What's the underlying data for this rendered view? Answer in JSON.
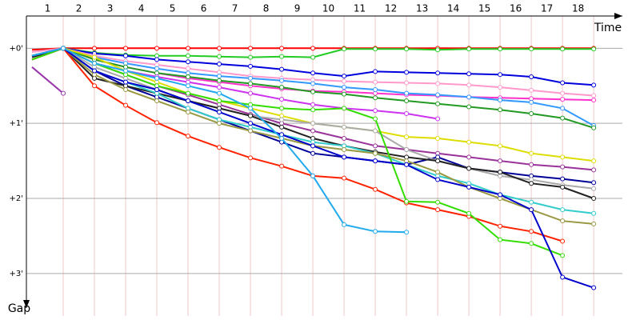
{
  "chart_data": {
    "type": "line",
    "x_label": "Time",
    "y_label": "Gap",
    "x": [
      0,
      1,
      2,
      3,
      4,
      5,
      6,
      7,
      8,
      9,
      10,
      11,
      12,
      13,
      14,
      15,
      16,
      17,
      18
    ],
    "xlim": [
      -0.18,
      18.92
    ],
    "xticks": [
      {
        "value": 0.5,
        "label": "1"
      },
      {
        "value": 1.5,
        "label": "2"
      },
      {
        "value": 2.5,
        "label": "3"
      },
      {
        "value": 3.5,
        "label": "4"
      },
      {
        "value": 4.5,
        "label": "5"
      },
      {
        "value": 5.5,
        "label": "6"
      },
      {
        "value": 6.5,
        "label": "7"
      },
      {
        "value": 7.5,
        "label": "8"
      },
      {
        "value": 8.5,
        "label": "9"
      },
      {
        "value": 9.5,
        "label": "10"
      },
      {
        "value": 10.5,
        "label": "11"
      },
      {
        "value": 11.5,
        "label": "12"
      },
      {
        "value": 12.5,
        "label": "13"
      },
      {
        "value": 13.5,
        "label": "14"
      },
      {
        "value": 14.5,
        "label": "15"
      },
      {
        "value": 15.5,
        "label": "16"
      },
      {
        "value": 16.5,
        "label": "17"
      },
      {
        "value": 17.5,
        "label": "18"
      }
    ],
    "xgrid": [
      1,
      2,
      3,
      4,
      5,
      6,
      7,
      8,
      9,
      10,
      11,
      12,
      13,
      14,
      15,
      16,
      17,
      18
    ],
    "ylim": [
      -0.43,
      3.46
    ],
    "yticks": [
      {
        "value": 0,
        "label": "+0'"
      },
      {
        "value": 1,
        "label": "+1'"
      },
      {
        "value": 2,
        "label": "+2'"
      },
      {
        "value": 3,
        "label": "+3'"
      }
    ],
    "grid": true,
    "series": [
      {
        "color": "#ff0000",
        "values": [
          0.02,
          0,
          0,
          0,
          0,
          0,
          0,
          0,
          0,
          0,
          0,
          0,
          0,
          0,
          0,
          0,
          0,
          0,
          0
        ]
      },
      {
        "color": "#22cc22",
        "values": [
          0.1,
          0,
          0.06,
          0.09,
          0.1,
          0.1,
          0.11,
          0.12,
          0.11,
          0.12,
          0.01,
          0.01,
          0.01,
          0.02,
          0.01,
          0.01,
          0.01,
          0.01,
          0.01
        ]
      },
      {
        "color": "#0000dd",
        "values": [
          0.1,
          0,
          0.07,
          0.1,
          0.15,
          0.18,
          0.21,
          0.24,
          0.28,
          0.33,
          0.37,
          0.31,
          0.32,
          0.33,
          0.34,
          0.35,
          0.38,
          0.46,
          0.49
        ]
      },
      {
        "color": "#ff99cc",
        "values": [
          0.05,
          0,
          0.1,
          0.17,
          0.22,
          0.27,
          0.32,
          0.37,
          0.4,
          0.42,
          0.44,
          0.45,
          0.46,
          0.47,
          0.49,
          0.52,
          0.56,
          0.6,
          0.63
        ]
      },
      {
        "color": "#ff33cc",
        "values": [
          0.1,
          0,
          0.15,
          0.25,
          0.33,
          0.4,
          0.45,
          0.5,
          0.54,
          0.57,
          0.58,
          0.6,
          0.62,
          0.63,
          0.65,
          0.66,
          0.67,
          0.68,
          0.69
        ]
      },
      {
        "color": "#3399ff",
        "values": [
          0.1,
          0,
          0.12,
          0.2,
          0.27,
          0.33,
          0.37,
          0.4,
          0.43,
          0.47,
          0.52,
          0.55,
          0.6,
          0.62,
          0.65,
          0.69,
          0.72,
          0.8,
          1.03
        ]
      },
      {
        "color": "#229922",
        "values": [
          0.1,
          0,
          0.15,
          0.25,
          0.33,
          0.38,
          0.43,
          0.47,
          0.52,
          0.58,
          0.61,
          0.66,
          0.7,
          0.74,
          0.78,
          0.82,
          0.87,
          0.93,
          1.06
        ]
      },
      {
        "color": "#cc33ee",
        "values": [
          0.1,
          0,
          0.2,
          0.3,
          0.38,
          0.45,
          0.52,
          0.6,
          0.68,
          0.75,
          0.8,
          0.83,
          0.87,
          0.94,
          null,
          null,
          null,
          null,
          null
        ]
      },
      {
        "color": "#dddd00",
        "values": [
          0.15,
          0,
          0.12,
          0.3,
          0.45,
          0.6,
          0.7,
          0.8,
          0.9,
          1.0,
          1.05,
          1.1,
          1.18,
          1.2,
          1.25,
          1.3,
          1.4,
          1.45,
          1.5
        ]
      },
      {
        "color": "#993399",
        "values": [
          0.15,
          0,
          0.2,
          0.35,
          0.5,
          0.62,
          0.75,
          0.88,
          1.0,
          1.1,
          1.2,
          1.3,
          1.35,
          1.4,
          1.45,
          1.5,
          1.55,
          1.58,
          1.62
        ]
      },
      {
        "color": "#000099",
        "values": [
          0.1,
          0,
          0.3,
          0.5,
          0.65,
          0.8,
          0.95,
          1.1,
          1.25,
          1.4,
          1.45,
          1.5,
          1.55,
          1.45,
          1.6,
          1.65,
          1.7,
          1.74,
          1.79
        ]
      },
      {
        "color": "#aaaaaa",
        "values": [
          0.1,
          0,
          0.25,
          0.4,
          0.55,
          0.7,
          0.8,
          0.9,
          0.95,
          1.0,
          1.05,
          1.1,
          1.35,
          1.5,
          1.6,
          1.7,
          1.75,
          1.82,
          1.87
        ]
      },
      {
        "color": "#222222",
        "values": [
          0.12,
          0,
          0.4,
          0.5,
          0.6,
          0.7,
          0.8,
          0.9,
          1.05,
          1.2,
          1.3,
          1.38,
          1.45,
          1.5,
          1.6,
          1.65,
          1.8,
          1.85,
          2.0
        ]
      },
      {
        "color": "#33cccc",
        "values": [
          0.1,
          0,
          0.3,
          0.45,
          0.6,
          0.8,
          0.95,
          1.05,
          1.15,
          1.25,
          1.3,
          1.4,
          1.55,
          1.7,
          1.8,
          1.95,
          2.05,
          2.15,
          2.2
        ]
      },
      {
        "color": "#999944",
        "values": [
          0.1,
          0,
          0.35,
          0.55,
          0.7,
          0.85,
          1.0,
          1.1,
          1.2,
          1.3,
          1.35,
          1.4,
          1.5,
          1.65,
          1.85,
          2.0,
          2.15,
          2.3,
          2.34
        ]
      },
      {
        "color": "#ff2200",
        "values": [
          0.15,
          0,
          0.5,
          0.76,
          0.99,
          1.17,
          1.32,
          1.46,
          1.57,
          1.7,
          1.73,
          1.88,
          2.06,
          2.15,
          2.24,
          2.37,
          2.44,
          2.57,
          null
        ]
      },
      {
        "color": "#33dd00",
        "values": [
          0.15,
          0,
          0.2,
          0.35,
          0.5,
          0.6,
          0.7,
          0.75,
          0.8,
          0.82,
          0.8,
          0.94,
          2.04,
          2.05,
          2.2,
          2.55,
          2.6,
          2.76,
          null
        ]
      },
      {
        "color": "#0000cc",
        "values": [
          0.1,
          0,
          0.3,
          0.45,
          0.55,
          0.7,
          0.85,
          1.0,
          1.15,
          1.3,
          1.45,
          1.5,
          1.55,
          1.75,
          1.85,
          1.95,
          2.15,
          3.05,
          3.19
        ]
      },
      {
        "color": "#22aaee",
        "values": [
          0.1,
          0,
          0.2,
          0.3,
          0.4,
          0.5,
          0.6,
          0.8,
          1.2,
          1.7,
          2.35,
          2.44,
          2.45,
          null,
          null,
          null,
          null,
          null,
          null
        ]
      },
      {
        "color": "#9933aa",
        "values": [
          0.25,
          0.6,
          null,
          null,
          null,
          null,
          null,
          null,
          null,
          null,
          null,
          null,
          null,
          null,
          null,
          null,
          null,
          null,
          null
        ]
      }
    ]
  }
}
